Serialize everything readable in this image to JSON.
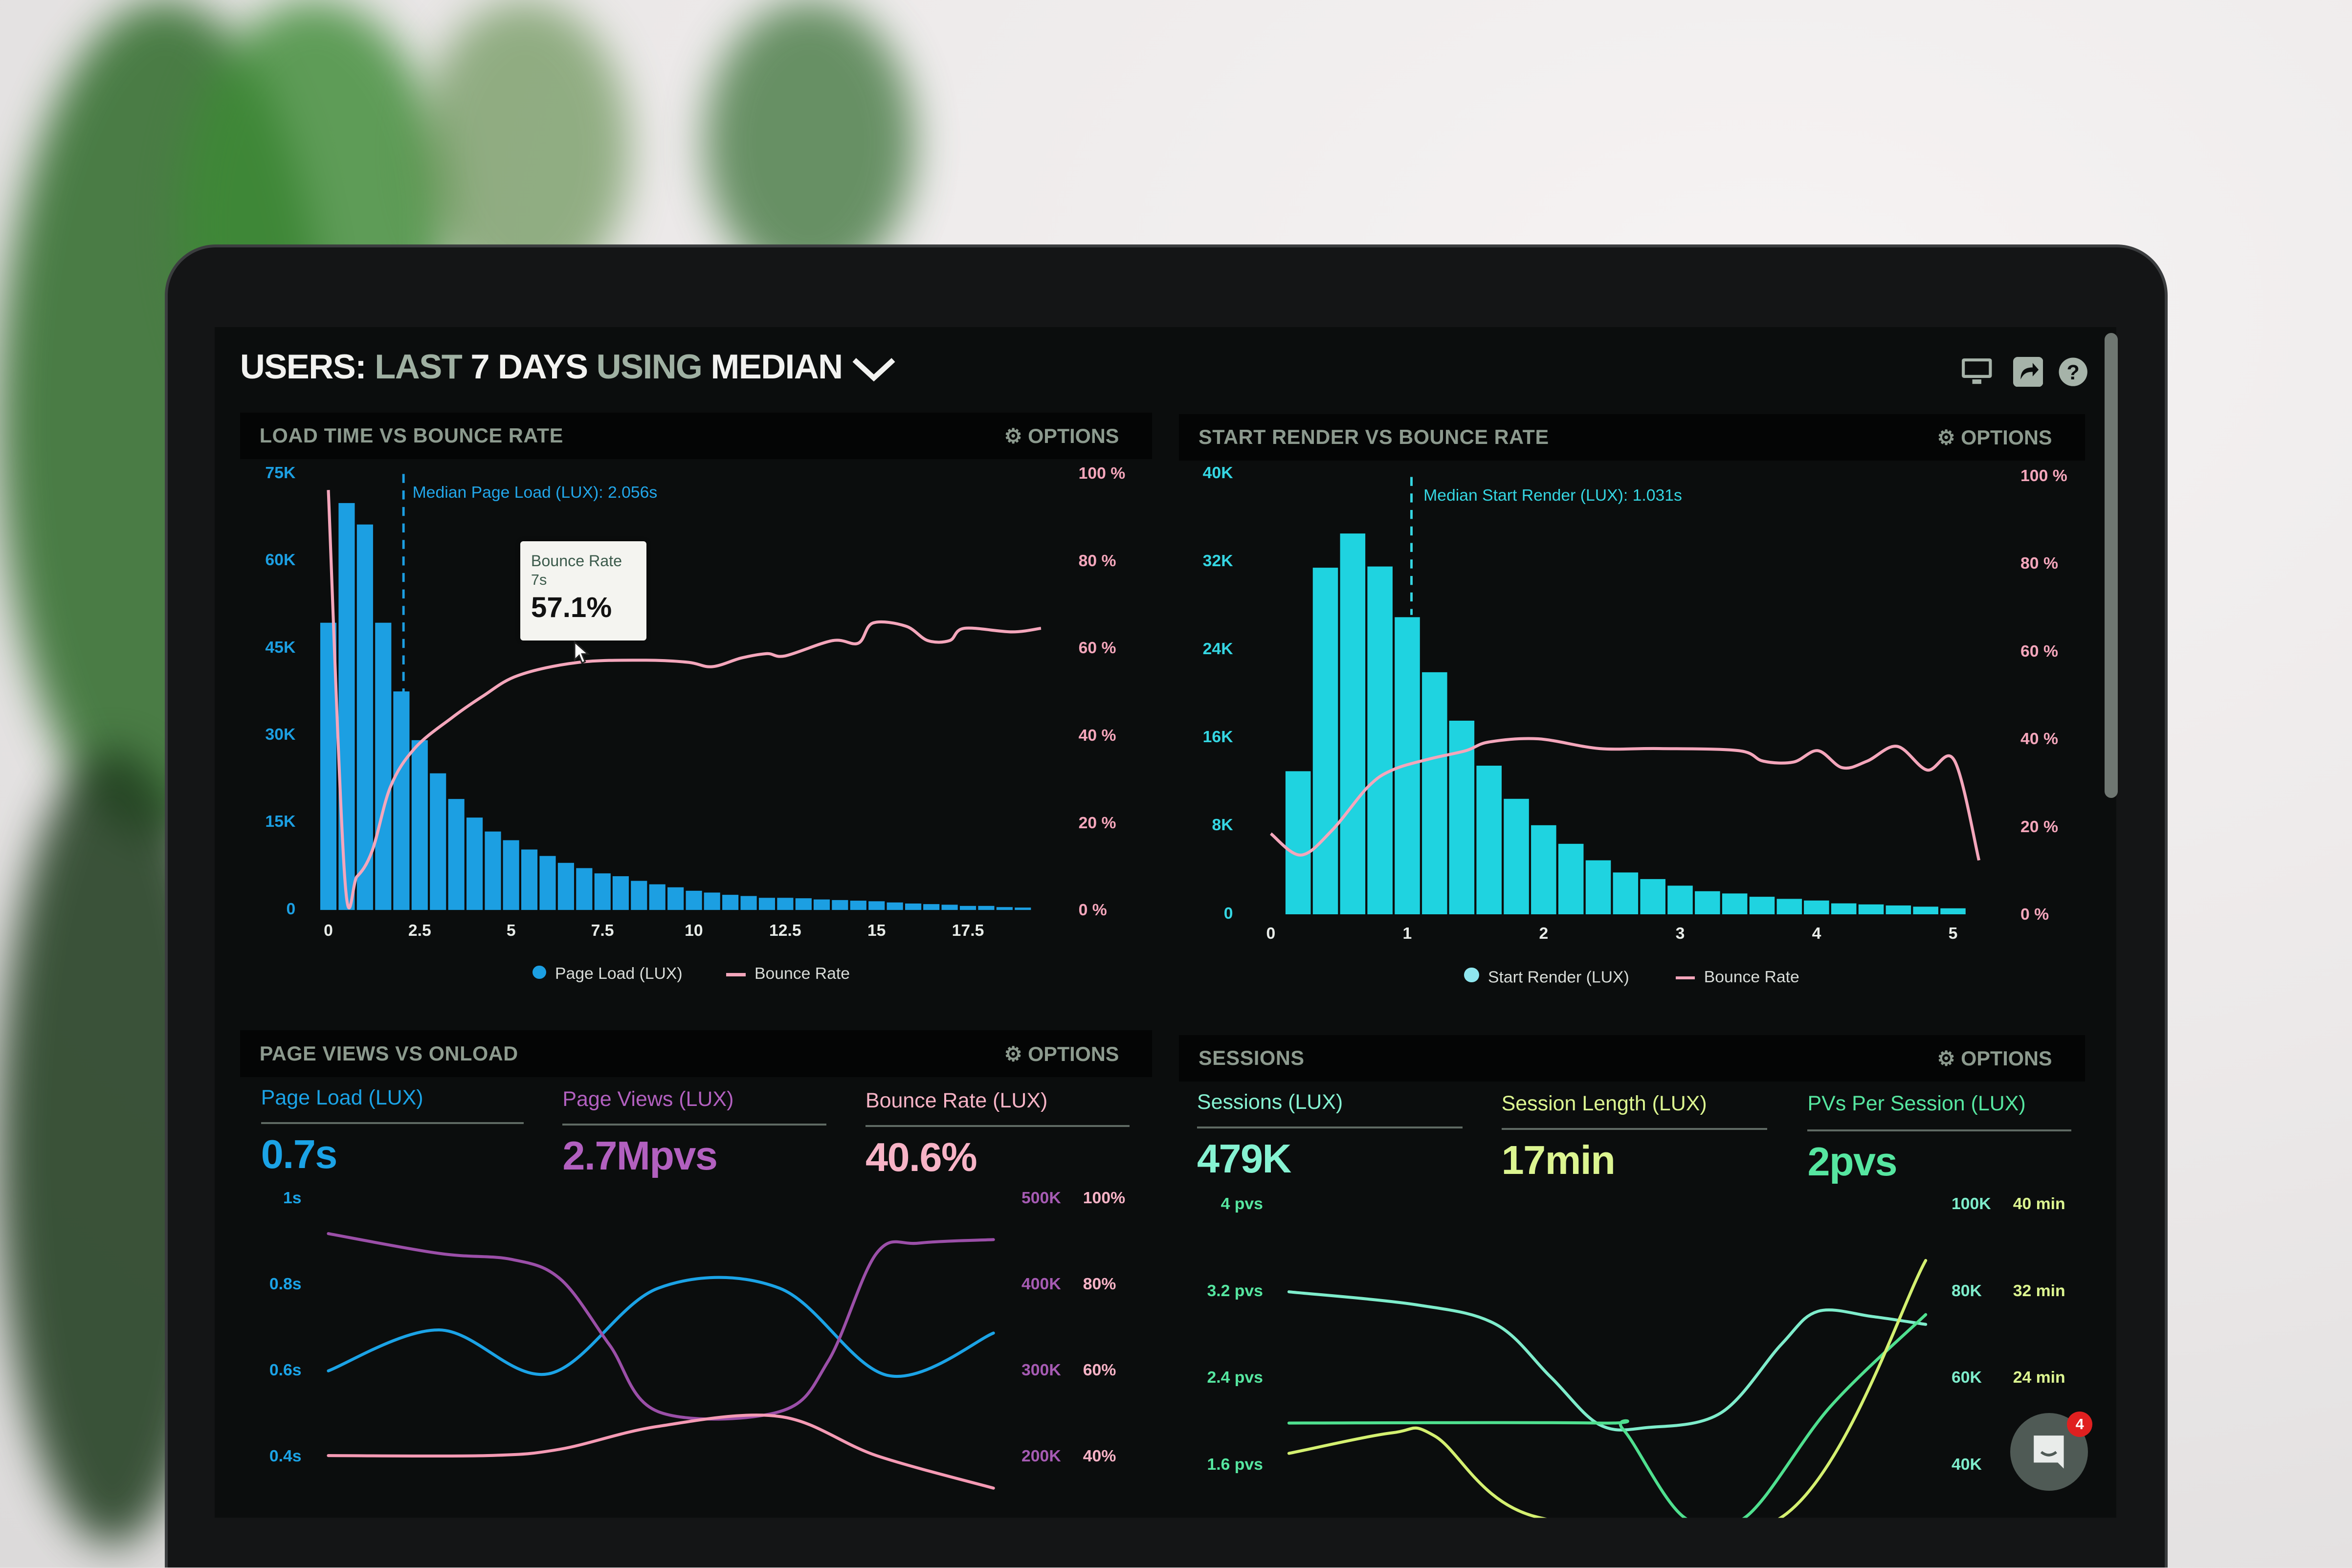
{
  "header": {
    "title_parts": [
      "USERS:",
      "LAST",
      "7 DAYS",
      "USING",
      "MEDIAN"
    ],
    "icons": [
      "monitor-icon",
      "share-icon",
      "help-icon"
    ]
  },
  "panels": {
    "load_time": {
      "title": "LOAD TIME VS BOUNCE RATE",
      "options": "OPTIONS"
    },
    "start_render": {
      "title": "START RENDER VS BOUNCE RATE",
      "options": "OPTIONS"
    },
    "page_views": {
      "title": "PAGE VIEWS VS ONLOAD",
      "options": "OPTIONS",
      "metrics": [
        {
          "label": "Page Load (LUX)",
          "value": "0.7s",
          "color": "#1ba3e6"
        },
        {
          "label": "Page Views (LUX)",
          "value": "2.7Mpvs",
          "color": "#b260bf"
        },
        {
          "label": "Bounce Rate (LUX)",
          "value": "40.6%",
          "color": "#f7b3c6"
        }
      ]
    },
    "sessions": {
      "title": "SESSIONS",
      "options": "OPTIONS",
      "metrics": [
        {
          "label": "Sessions (LUX)",
          "value": "479K",
          "color": "#86f2d2"
        },
        {
          "label": "Session Length (LUX)",
          "value": "17min",
          "color": "#dcf590"
        },
        {
          "label": "PVs Per Session (LUX)",
          "value": "2pvs",
          "color": "#56e6a0"
        }
      ]
    }
  },
  "chat_widget": {
    "badge": "4",
    "badge_color": "#e02020"
  },
  "chart_data": [
    {
      "id": "load_time",
      "type": "bar+line",
      "x_ticks": [
        "0",
        "2.5",
        "5",
        "7.5",
        "10",
        "12.5",
        "15",
        "17.5"
      ],
      "x_tick_values": [
        0,
        2.5,
        5,
        7.5,
        10,
        12.5,
        15,
        17.5
      ],
      "y_ticks": [
        "75K",
        "60K",
        "45K",
        "30K",
        "15K",
        "0"
      ],
      "y_tick_values": [
        75,
        60,
        45,
        30,
        15,
        0
      ],
      "y2_ticks": [
        "100 %",
        "80 %",
        "60 %",
        "40 %",
        "20 %",
        "0 %"
      ],
      "y2_tick_values": [
        100,
        80,
        60,
        40,
        20,
        0
      ],
      "ylim": [
        0,
        75
      ],
      "y_unit": "K",
      "y2lim": [
        0,
        100
      ],
      "median": {
        "x": 2.056,
        "label": "Median Page Load (LUX): 2.056s"
      },
      "tooltip": {
        "title": "Bounce Rate",
        "x_label": "7s",
        "value": "57.1%"
      },
      "series": [
        {
          "name": "Page Load (LUX)",
          "type": "bar",
          "color": "#1c9fe2",
          "bin_width": 0.5,
          "x_start": 0,
          "values": [
            49.4,
            70,
            66.3,
            49.4,
            37.6,
            29.2,
            23.5,
            19.1,
            15.9,
            13.5,
            12,
            10.4,
            9.3,
            8.1,
            7.2,
            6.3,
            5.8,
            5.0,
            4.4,
            3.9,
            3.3,
            3.0,
            2.6,
            2.4,
            2.1,
            2.1,
            2.0,
            1.8,
            1.7,
            1.6,
            1.5,
            1.3,
            1.1,
            1.0,
            0.9,
            0.7,
            0.7,
            0.5,
            0.4
          ]
        },
        {
          "name": "Bounce Rate",
          "type": "line",
          "axis": "y2",
          "color": "#f4a6bb",
          "points": [
            [
              0,
              96.5
            ],
            [
              0.45,
              7.4
            ],
            [
              0.78,
              7.9
            ],
            [
              1.2,
              13.8
            ],
            [
              1.7,
              28.5
            ],
            [
              2.36,
              37.3
            ],
            [
              3.36,
              44.2
            ],
            [
              4.2,
              49.1
            ],
            [
              5.19,
              54
            ],
            [
              6.85,
              57
            ],
            [
              8.7,
              57.5
            ],
            [
              9.86,
              57
            ],
            [
              10.5,
              56
            ],
            [
              11.3,
              58
            ],
            [
              12,
              59
            ],
            [
              12.5,
              58.5
            ],
            [
              13.8,
              62
            ],
            [
              14.5,
              61.4
            ],
            [
              14.9,
              66
            ],
            [
              15.8,
              65.3
            ],
            [
              16.4,
              62
            ],
            [
              17,
              62
            ],
            [
              17.4,
              64.8
            ],
            [
              18.7,
              64
            ],
            [
              19.5,
              64.8
            ]
          ]
        }
      ]
    },
    {
      "id": "start_render",
      "type": "bar+line",
      "x_ticks": [
        "0",
        "1",
        "2",
        "3",
        "4",
        "5"
      ],
      "x_tick_values": [
        0,
        1,
        2,
        3,
        4,
        5
      ],
      "y_ticks": [
        "40K",
        "32K",
        "24K",
        "16K",
        "8K",
        "0"
      ],
      "y_tick_values": [
        40,
        32,
        24,
        16,
        8,
        0
      ],
      "y2_ticks": [
        "100 %",
        "80 %",
        "60 %",
        "40 %",
        "20 %",
        "0 %"
      ],
      "y2_tick_values": [
        100,
        80,
        60,
        40,
        20,
        0
      ],
      "ylim": [
        0,
        40
      ],
      "y_unit": "K",
      "y2lim": [
        0,
        100
      ],
      "median": {
        "x": 1.031,
        "label": "Median Start Render (LUX): 1.031s"
      },
      "series": [
        {
          "name": "Start Render (LUX)",
          "type": "bar",
          "color": "#1fd3e0",
          "bin_width": 0.2,
          "x_start": 0.2,
          "values": [
            13,
            31.5,
            34.6,
            31.6,
            27,
            22,
            17.6,
            13.5,
            10.5,
            8.1,
            6.4,
            4.9,
            3.8,
            3.2,
            2.6,
            2.1,
            1.9,
            1.6,
            1.4,
            1.25,
            1.0,
            0.9,
            0.8,
            0.7,
            0.55
          ]
        },
        {
          "name": "Bounce Rate",
          "type": "line",
          "axis": "y2",
          "color": "#f4a6bb",
          "points": [
            [
              0,
              18.7
            ],
            [
              0.22,
              13.8
            ],
            [
              0.45,
              19.5
            ],
            [
              0.71,
              29.3
            ],
            [
              0.89,
              33.2
            ],
            [
              1.16,
              35.7
            ],
            [
              1.43,
              37.6
            ],
            [
              1.6,
              39.6
            ],
            [
              1.96,
              40.3
            ],
            [
              2.41,
              38.1
            ],
            [
              2.85,
              38.1
            ],
            [
              3.43,
              37.6
            ],
            [
              3.61,
              35.2
            ],
            [
              3.83,
              35
            ],
            [
              4.01,
              37.6
            ],
            [
              4.19,
              33.7
            ],
            [
              4.37,
              35.2
            ],
            [
              4.59,
              38.6
            ],
            [
              4.81,
              33.2
            ],
            [
              5.01,
              35.4
            ],
            [
              5.19,
              12.6
            ]
          ]
        }
      ]
    },
    {
      "id": "page_views",
      "type": "line",
      "y_ticks": [
        "1s",
        "0.8s",
        "0.6s",
        "0.4s"
      ],
      "y_tick_values": [
        1,
        0.8,
        0.6,
        0.4
      ],
      "y2_ticks": [
        "500K",
        "400K",
        "300K",
        "200K"
      ],
      "y2_tick_values": [
        500,
        400,
        300,
        200
      ],
      "y3_ticks": [
        "100%",
        "80%",
        "60%",
        "40%"
      ],
      "y3_tick_values": [
        100,
        80,
        60,
        40
      ],
      "ylim": [
        0.4,
        1
      ],
      "y2lim": [
        200,
        500
      ],
      "y3lim": [
        40,
        100
      ],
      "xlim": [
        0,
        12
      ],
      "series": [
        {
          "name": "Page Load (LUX)",
          "axis": "y",
          "color": "#1ba3e6",
          "points": [
            [
              0,
              0.601
            ],
            [
              2,
              0.696
            ],
            [
              3.97,
              0.594
            ],
            [
              5.95,
              0.793
            ],
            [
              8.14,
              0.793
            ],
            [
              10.1,
              0.59
            ],
            [
              12,
              0.689
            ]
          ]
        },
        {
          "name": "Page Views (LUX)",
          "axis": "y2",
          "color": "#9b4fa8",
          "points": [
            [
              0,
              460
            ],
            [
              2,
              437
            ],
            [
              3.31,
              430
            ],
            [
              4.19,
              407
            ],
            [
              5.07,
              331
            ],
            [
              5.95,
              253
            ],
            [
              8.14,
              253
            ],
            [
              9.02,
              312
            ],
            [
              9.89,
              437
            ],
            [
              10.66,
              449
            ],
            [
              12,
              453
            ]
          ]
        },
        {
          "name": "Bounce Rate (LUX)",
          "axis": "y3",
          "color": "#f59ab4",
          "points": [
            [
              0,
              40.4
            ],
            [
              2.87,
              40.4
            ],
            [
              4.19,
              41.9
            ],
            [
              5.95,
              47.2
            ],
            [
              8.14,
              49.5
            ],
            [
              9.89,
              40.4
            ],
            [
              12,
              32.8
            ]
          ]
        }
      ]
    },
    {
      "id": "sessions",
      "type": "line",
      "y_ticks": [
        "4 pvs",
        "3.2 pvs",
        "2.4 pvs",
        "1.6 pvs"
      ],
      "y_tick_values": [
        4,
        3.2,
        2.4,
        1.6
      ],
      "y2_ticks": [
        "100K",
        "80K",
        "60K",
        "40K"
      ],
      "y2_tick_values": [
        100,
        80,
        60,
        40
      ],
      "y3_ticks": [
        "40 min",
        "32 min",
        "24 min"
      ],
      "y3_tick_values": [
        40,
        32,
        24
      ],
      "ylim": [
        1.6,
        4
      ],
      "y2lim": [
        40,
        100
      ],
      "y3lim": [
        16,
        40
      ],
      "xlim": [
        0,
        12
      ],
      "series": [
        {
          "name": "Sessions (LUX)",
          "axis": "y2",
          "color": "#7eeccb",
          "points": [
            [
              0,
              80
            ],
            [
              2.41,
              77
            ],
            [
              3.9,
              72.5
            ],
            [
              4.93,
              60.4
            ],
            [
              5.85,
              49.4
            ],
            [
              6.76,
              48.7
            ],
            [
              8.14,
              52.1
            ],
            [
              9.28,
              67.9
            ],
            [
              9.97,
              75.5
            ],
            [
              11,
              74.3
            ],
            [
              12,
              72.5
            ]
          ]
        },
        {
          "name": "PVs Per Session (LUX)",
          "axis": "y",
          "color": "#4fe08f",
          "points": [
            [
              0,
              1.99
            ],
            [
              5.85,
              1.99
            ],
            [
              6.3,
              1.93
            ],
            [
              7.45,
              1.12
            ],
            [
              8.6,
              1.12
            ],
            [
              10.2,
              2.14
            ],
            [
              12,
              2.99
            ]
          ]
        },
        {
          "name": "Session Length (LUX)",
          "axis": "y3",
          "color": "#d4f070",
          "points": [
            [
              0,
              17.1
            ],
            [
              1.95,
              19
            ],
            [
              2.75,
              18.7
            ],
            [
              4.7,
              11.2
            ],
            [
              9.28,
              11.2
            ],
            [
              12,
              34.9
            ]
          ]
        }
      ]
    }
  ]
}
